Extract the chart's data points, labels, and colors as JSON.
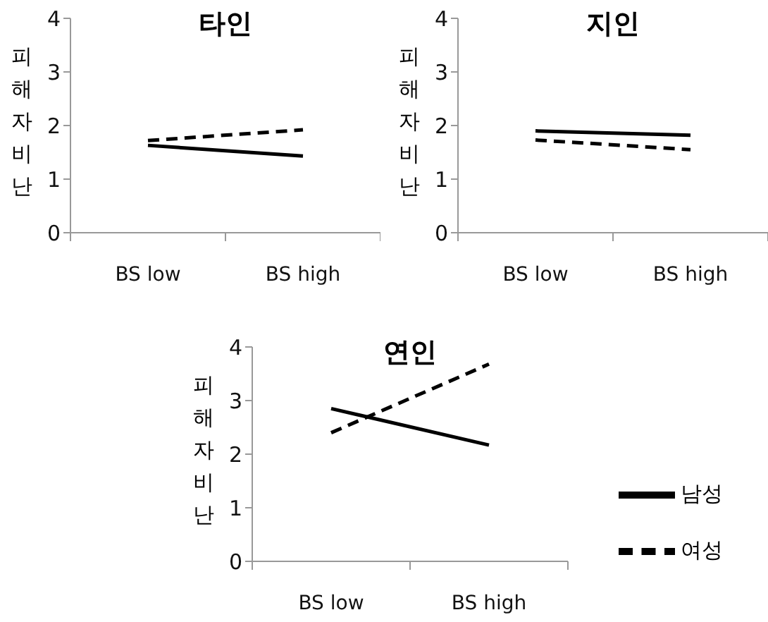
{
  "chart_data": [
    {
      "type": "line",
      "title": "타인",
      "ylabel": "피해자비난",
      "categories": [
        "BS low",
        "BS high"
      ],
      "ylim": [
        0,
        4
      ],
      "yticks": [
        0,
        1,
        2,
        3,
        4
      ],
      "grid": false,
      "legend": false,
      "marker": "none",
      "series": [
        {
          "color": "#000000",
          "line_style": "solid",
          "values": [
            1.63,
            1.43
          ]
        },
        {
          "color": "#000000",
          "line_style": "dashed",
          "values": [
            1.72,
            1.92
          ]
        }
      ]
    },
    {
      "type": "line",
      "title": "지인",
      "ylabel": "피해자비난",
      "categories": [
        "BS low",
        "BS high"
      ],
      "ylim": [
        0,
        4
      ],
      "yticks": [
        0,
        1,
        2,
        3,
        4
      ],
      "grid": false,
      "legend": false,
      "marker": "none",
      "series": [
        {
          "color": "#000000",
          "line_style": "solid",
          "values": [
            1.9,
            1.82
          ]
        },
        {
          "color": "#000000",
          "line_style": "dashed",
          "values": [
            1.73,
            1.55
          ]
        }
      ]
    },
    {
      "type": "line",
      "title": "연인",
      "ylabel": "피해자비난",
      "categories": [
        "BS low",
        "BS high"
      ],
      "ylim": [
        0,
        4
      ],
      "yticks": [
        0,
        1,
        2,
        3,
        4
      ],
      "grid": false,
      "legend": "right",
      "marker": "none",
      "series": [
        {
          "name": "남성",
          "color": "#000000",
          "line_style": "solid",
          "values": [
            2.85,
            2.17
          ]
        },
        {
          "name": "여성",
          "color": "#000000",
          "line_style": "dashed",
          "values": [
            2.4,
            3.68
          ]
        }
      ]
    }
  ]
}
